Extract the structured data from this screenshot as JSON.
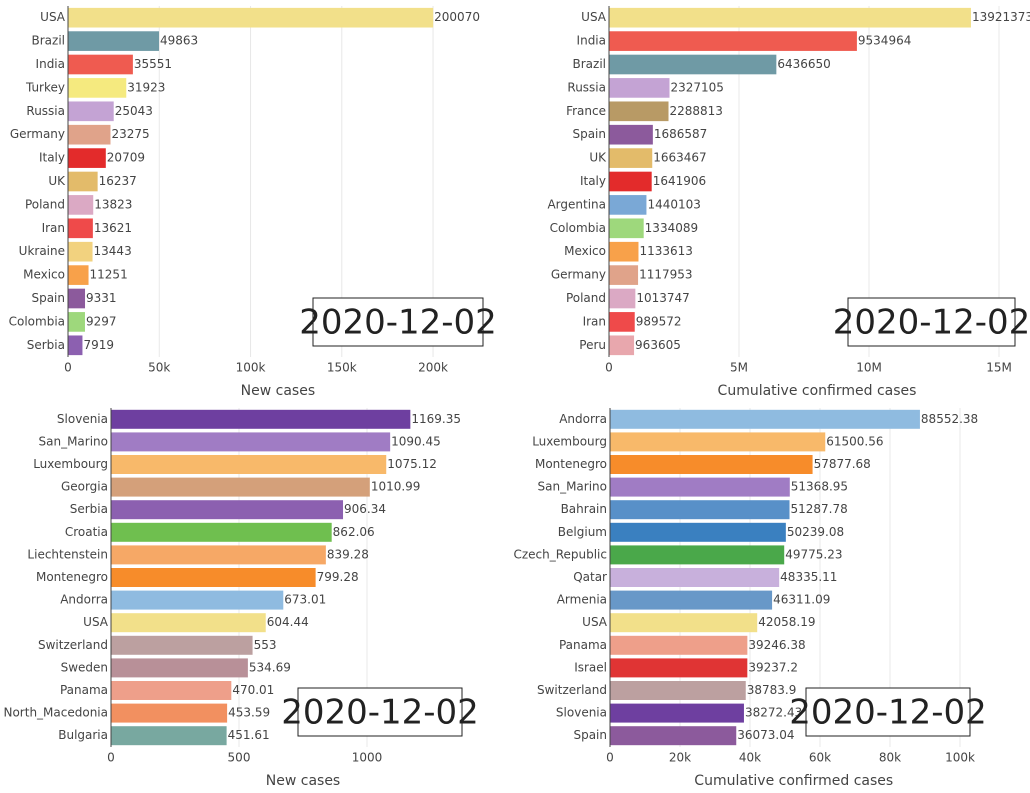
{
  "chart_data": [
    {
      "type": "bar",
      "xlabel": "New cases",
      "annotation": "2020-12-02",
      "categories": [
        "USA",
        "Brazil",
        "India",
        "Turkey",
        "Russia",
        "Germany",
        "Italy",
        "UK",
        "Poland",
        "Iran",
        "Ukraine",
        "Mexico",
        "Spain",
        "Colombia",
        "Serbia"
      ],
      "values": [
        200070,
        49863,
        35551,
        31923,
        25043,
        23275,
        20709,
        16237,
        13823,
        13621,
        13443,
        11251,
        9331,
        9297,
        7919
      ],
      "colors": [
        "#f2e08a",
        "#6f9aa5",
        "#ef5b50",
        "#f5ea7f",
        "#c4a3d4",
        "#e0a38a",
        "#e32b2b",
        "#e3bb6a",
        "#dba9c4",
        "#ef4a4a",
        "#f2d27f",
        "#f8a14a",
        "#8c5a9c",
        "#9ed87c",
        "#8c60b0"
      ],
      "xlim": [
        0,
        230000
      ],
      "xticks": [
        0,
        {
          "value": 50000,
          "label": "50k"
        },
        {
          "value": 100000,
          "label": "100k"
        },
        {
          "value": 150000,
          "label": "150k"
        },
        {
          "value": 200000,
          "label": "200k"
        }
      ],
      "grid": true
    },
    {
      "type": "bar",
      "xlabel": "Cumulative confirmed cases",
      "annotation": "2020-12-02",
      "categories": [
        "USA",
        "India",
        "Brazil",
        "Russia",
        "France",
        "Spain",
        "UK",
        "Italy",
        "Argentina",
        "Colombia",
        "Mexico",
        "Germany",
        "Poland",
        "Iran",
        "Peru"
      ],
      "values": [
        13921373,
        9534964,
        6436650,
        2327105,
        2288813,
        1686587,
        1663467,
        1641906,
        1440103,
        1334089,
        1133613,
        1117953,
        1013747,
        989572,
        963605
      ],
      "colors": [
        "#f2e08a",
        "#ef5b50",
        "#6f9aa5",
        "#c4a3d4",
        "#b89a65",
        "#8c5a9c",
        "#e3bb6a",
        "#e32b2b",
        "#7aa8d6",
        "#9ed87c",
        "#f8a14a",
        "#e0a38a",
        "#dba9c4",
        "#ef4a4a",
        "#e8a7ad"
      ],
      "xlim": [
        0,
        16000000
      ],
      "xticks": [
        0,
        {
          "value": 5000000,
          "label": "5M"
        },
        {
          "value": 10000000,
          "label": "10M"
        },
        {
          "value": 15000000,
          "label": "15M"
        }
      ],
      "grid": true
    },
    {
      "type": "bar",
      "xlabel": "New cases",
      "annotation": "2020-12-02",
      "categories": [
        "Slovenia",
        "San_Marino",
        "Luxembourg",
        "Georgia",
        "Serbia",
        "Croatia",
        "Liechtenstein",
        "Montenegro",
        "Andorra",
        "USA",
        "Switzerland",
        "Sweden",
        "Panama",
        "North_Macedonia",
        "Bulgaria"
      ],
      "values": [
        1169.35,
        1090.45,
        1075.12,
        1010.99,
        906.34,
        862.06,
        839.28,
        799.28,
        673.01,
        604.44,
        553,
        534.69,
        470.01,
        453.59,
        451.61
      ],
      "colors": [
        "#6e3fa0",
        "#a07cc4",
        "#f8b96a",
        "#d4a07a",
        "#8c60b0",
        "#6fbf4f",
        "#f6a866",
        "#f78c2a",
        "#8fbbe0",
        "#f2e08a",
        "#bca0a0",
        "#b89098",
        "#ee9f8a",
        "#f29060",
        "#78a8a0"
      ],
      "xlim": [
        0,
        1500
      ],
      "xticks": [
        0,
        500,
        1000
      ],
      "grid": true
    },
    {
      "type": "bar",
      "xlabel": "Cumulative confirmed cases",
      "annotation": "2020-12-02",
      "categories": [
        "Andorra",
        "Luxembourg",
        "Montenegro",
        "San_Marino",
        "Bahrain",
        "Belgium",
        "Czech_Republic",
        "Qatar",
        "Armenia",
        "USA",
        "Panama",
        "Israel",
        "Switzerland",
        "Slovenia",
        "Spain"
      ],
      "values": [
        88552.38,
        61500.56,
        57877.68,
        51368.95,
        51287.78,
        50239.08,
        49775.23,
        48335.11,
        46311.09,
        42058.19,
        39246.38,
        39237.2,
        38783.9,
        38272.43,
        36073.04
      ],
      "colors": [
        "#8fbbe0",
        "#f8b96a",
        "#f78c2a",
        "#a07cc4",
        "#5890c8",
        "#3a80c0",
        "#4aa84a",
        "#c8b0dc",
        "#6898c8",
        "#f2e08a",
        "#ee9f8a",
        "#e03434",
        "#bca0a0",
        "#6e3fa0",
        "#8c5a9c"
      ],
      "xlim": [
        0,
        105000
      ],
      "xticks": [
        0,
        {
          "value": 20000,
          "label": "20k"
        },
        {
          "value": 40000,
          "label": "40k"
        },
        {
          "value": 60000,
          "label": "60k"
        },
        {
          "value": 80000,
          "label": "80k"
        },
        {
          "value": 100000,
          "label": "100k"
        }
      ],
      "grid": true
    }
  ]
}
